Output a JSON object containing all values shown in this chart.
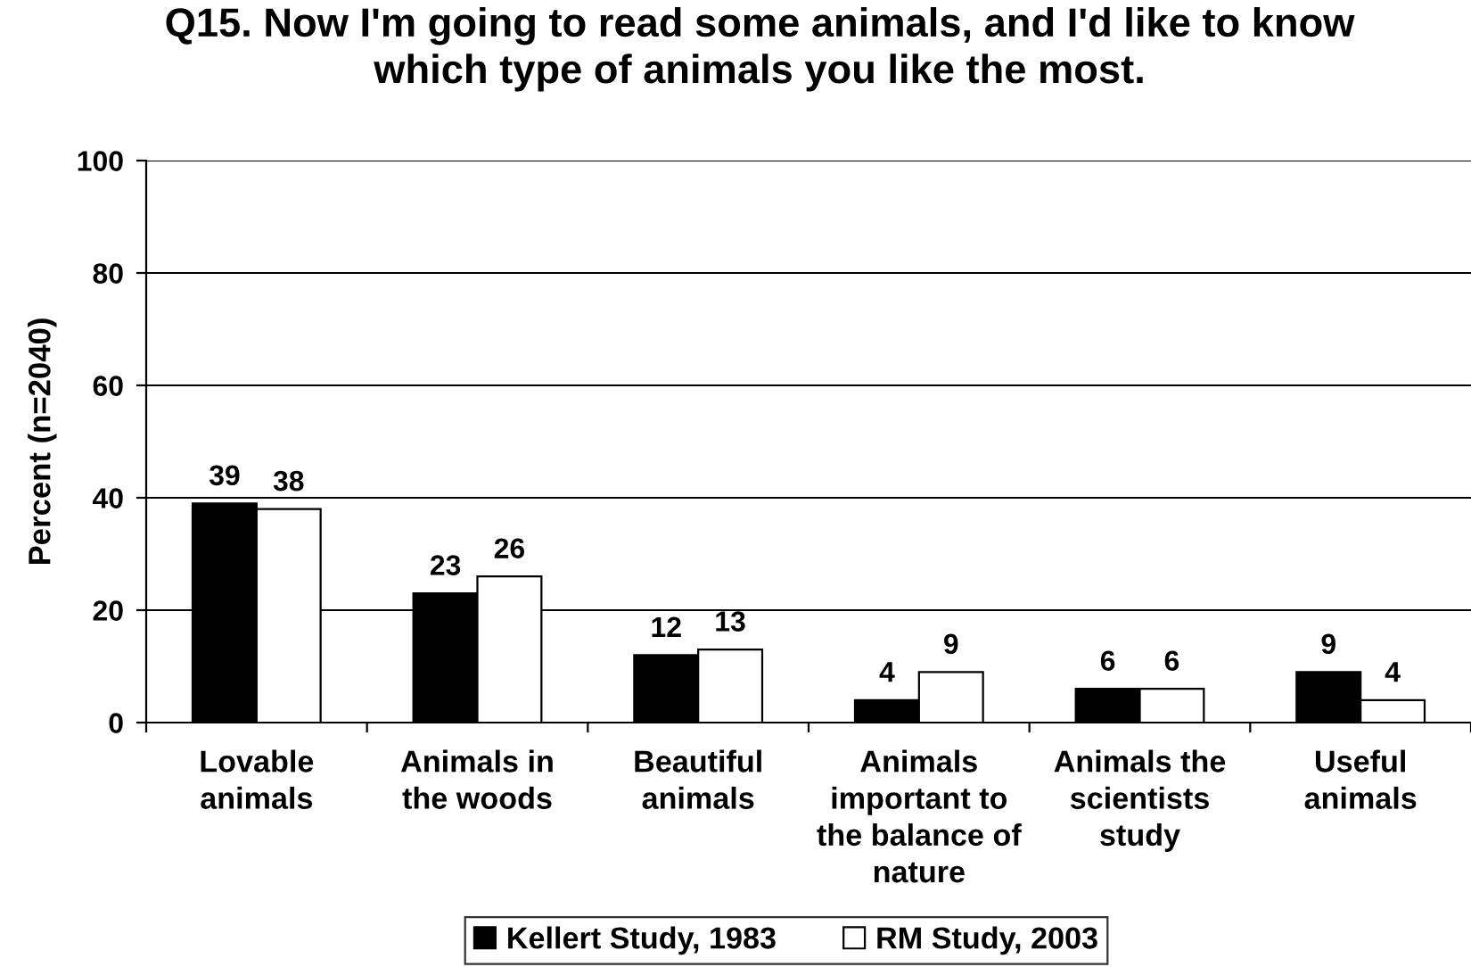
{
  "chart_data": {
    "type": "bar",
    "title": "Q15. Now I'm going to read some animals, and I'd like to know\nwhich type of animals you like the most.",
    "ylabel": "Percent (n=2040)",
    "categories": [
      "Lovable\nanimals",
      "Animals in\nthe woods",
      "Beautiful\nanimals",
      "Animals\nimportant to\nthe balance of\nnature",
      "Animals the\nscientists\nstudy",
      "Useful\nanimals"
    ],
    "series": [
      {
        "name": "Kellert Study, 1983",
        "color": "#000000",
        "values": [
          39,
          23,
          12,
          4,
          6,
          9
        ]
      },
      {
        "name": "RM Study, 2003",
        "color": "#ffffff",
        "values": [
          38,
          26,
          13,
          9,
          6,
          4
        ]
      }
    ],
    "ylim": [
      0,
      100
    ],
    "yticks": [
      0,
      20,
      40,
      60,
      80,
      100
    ],
    "grid": "y",
    "legend": "bottom",
    "data_labels": true
  }
}
